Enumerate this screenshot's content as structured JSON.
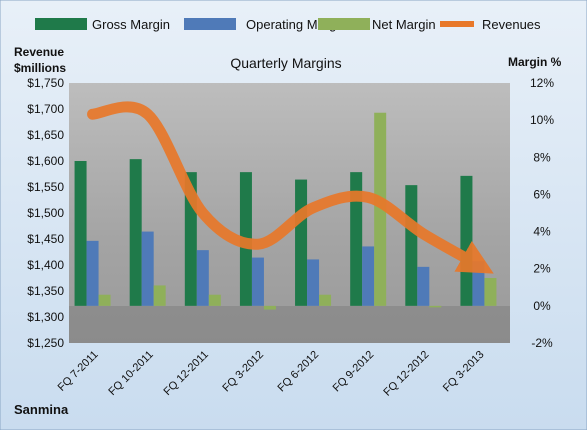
{
  "chart_data": {
    "type": "bar",
    "title": "Quarterly Margins",
    "company": "Sanmina",
    "left_axis": {
      "label_line1": "Revenue",
      "label_line2": "$millions",
      "min": 1250,
      "max": 1750,
      "step": 50,
      "ticks": [
        "$1,250",
        "$1,300",
        "$1,350",
        "$1,400",
        "$1,450",
        "$1,500",
        "$1,550",
        "$1,600",
        "$1,650",
        "$1,700",
        "$1,750"
      ]
    },
    "right_axis": {
      "label": "Margin %",
      "min": -2,
      "max": 12,
      "step": 2,
      "ticks": [
        "-2%",
        "0%",
        "2%",
        "4%",
        "6%",
        "8%",
        "10%",
        "12%"
      ]
    },
    "categories": [
      "FQ 7-2011",
      "FQ 10-2011",
      "FQ 12-2011",
      "FQ 3-2012",
      "FQ 6-2012",
      "FQ 9-2012",
      "FQ 12-2012",
      "FQ 3-2013"
    ],
    "series": [
      {
        "name": "Gross Margin",
        "kind": "bar",
        "axis": "right",
        "color": "#1f7a4a",
        "values": [
          7.8,
          7.9,
          7.2,
          7.2,
          6.8,
          7.2,
          6.5,
          7.0
        ]
      },
      {
        "name": "Operating Margin",
        "kind": "bar",
        "axis": "right",
        "color": "#4f7ab8",
        "values": [
          3.5,
          4.0,
          3.0,
          2.6,
          2.5,
          3.2,
          2.1,
          2.4
        ]
      },
      {
        "name": "Net Margin",
        "kind": "bar",
        "axis": "right",
        "color": "#8fb05a",
        "values": [
          0.6,
          1.1,
          0.6,
          -0.2,
          0.6,
          10.4,
          0.0,
          1.5
        ]
      },
      {
        "name": "Revenues",
        "kind": "line",
        "axis": "left",
        "color": "#e8782a",
        "values": [
          1690,
          1690,
          1500,
          1440,
          1510,
          1530,
          1460,
          1400
        ]
      }
    ],
    "legend_position": "top",
    "grid": false,
    "colors": {
      "plot_bg": "#a7a7a7",
      "page_bg": "#dbe7f3",
      "zero_band": "#7f7f7f"
    }
  }
}
